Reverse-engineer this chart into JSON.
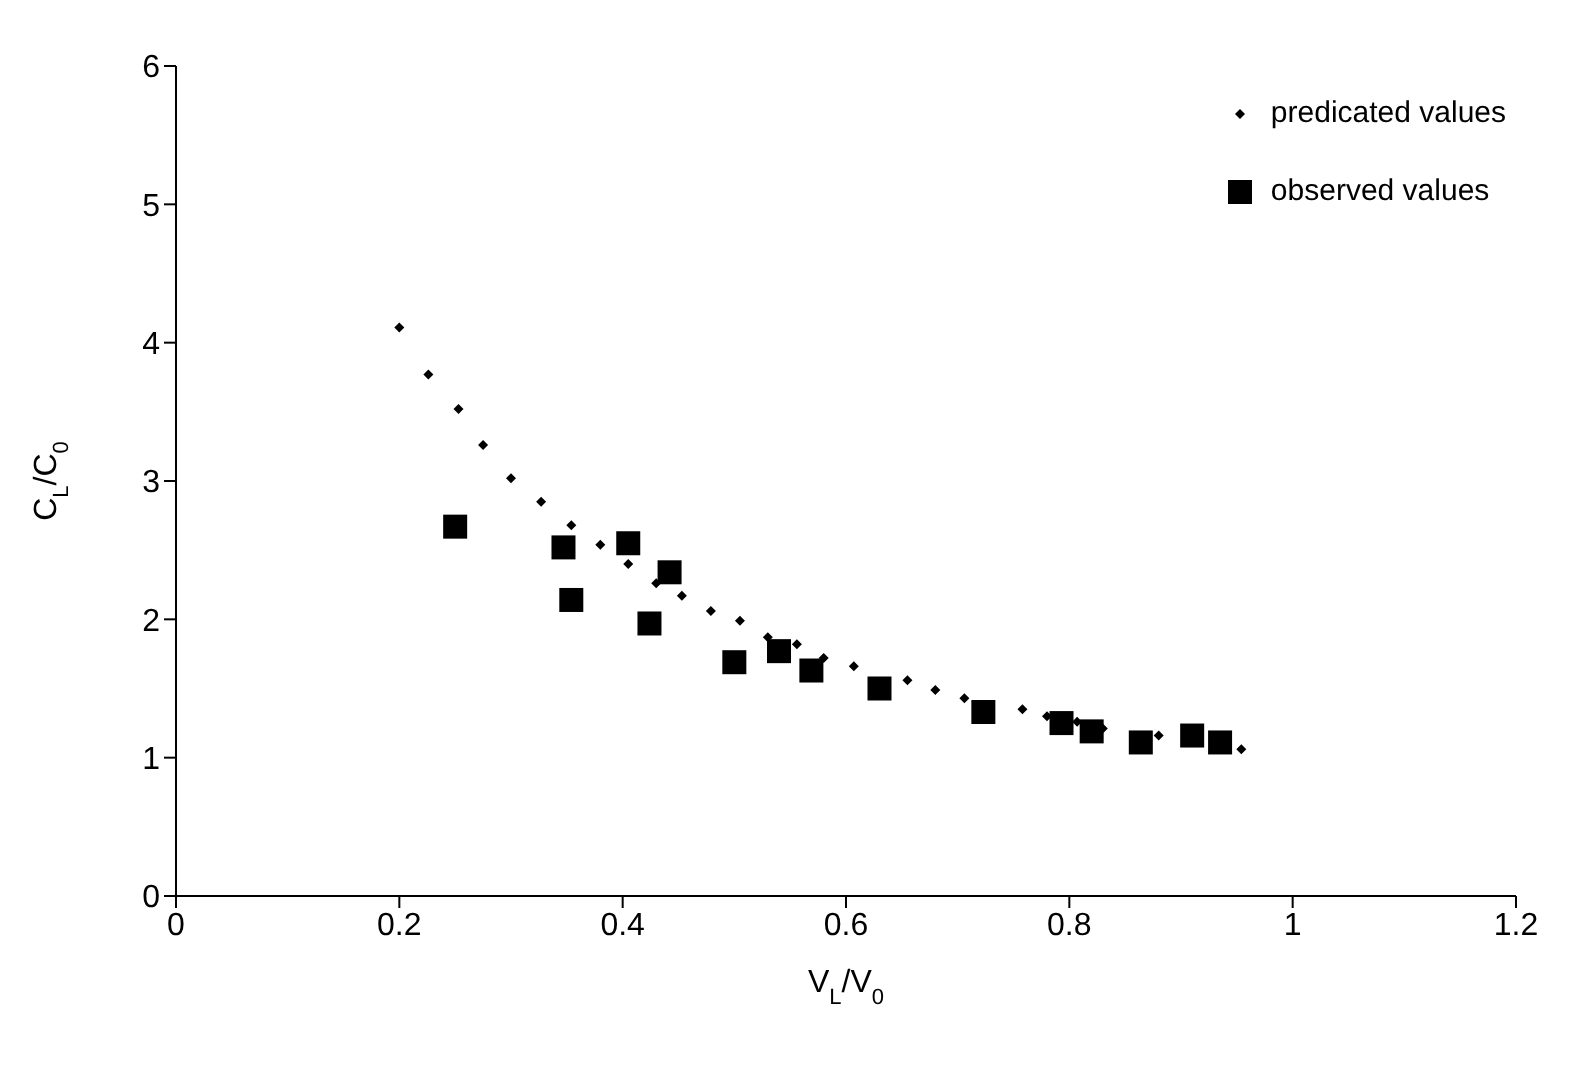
{
  "chart_data": {
    "type": "scatter",
    "xlabel": "V$_{L}$/V$_{0}$",
    "ylabel": "C$_{L}$/C$_{0}$",
    "xlim": [
      0,
      1.2
    ],
    "xticks": [
      0,
      0.2,
      0.4,
      0.6,
      0.8,
      1,
      1.2
    ],
    "ylim": [
      0,
      6
    ],
    "yticks": [
      0,
      1,
      2,
      3,
      4,
      5,
      6
    ],
    "grid": false,
    "legend": "top right",
    "series": [
      {
        "name": "predicated values",
        "color": "#000000",
        "marker": "diamond",
        "x": [
          0.2,
          0.226,
          0.253,
          0.275,
          0.3,
          0.327,
          0.354,
          0.38,
          0.405,
          0.43,
          0.453,
          0.479,
          0.505,
          0.53,
          0.556,
          0.58,
          0.607,
          0.655,
          0.68,
          0.706,
          0.758,
          0.78,
          0.807,
          0.83,
          0.88,
          0.954
        ],
        "values": [
          4.11,
          3.77,
          3.52,
          3.26,
          3.02,
          2.85,
          2.68,
          2.54,
          2.4,
          2.26,
          2.17,
          2.06,
          1.99,
          1.87,
          1.82,
          1.72,
          1.66,
          1.56,
          1.49,
          1.43,
          1.35,
          1.3,
          1.26,
          1.21,
          1.16,
          1.06
        ]
      },
      {
        "name": "observed values",
        "color": "#000000",
        "marker": "square",
        "x": [
          0.25,
          0.347,
          0.354,
          0.405,
          0.442,
          0.424,
          0.5,
          0.54,
          0.569,
          0.63,
          0.723,
          0.793,
          0.82,
          0.864,
          0.91,
          0.935
        ],
        "values": [
          2.67,
          2.52,
          2.14,
          2.55,
          2.34,
          1.97,
          1.69,
          1.77,
          1.63,
          1.5,
          1.33,
          1.25,
          1.19,
          1.11,
          1.16,
          1.11
        ]
      }
    ]
  }
}
